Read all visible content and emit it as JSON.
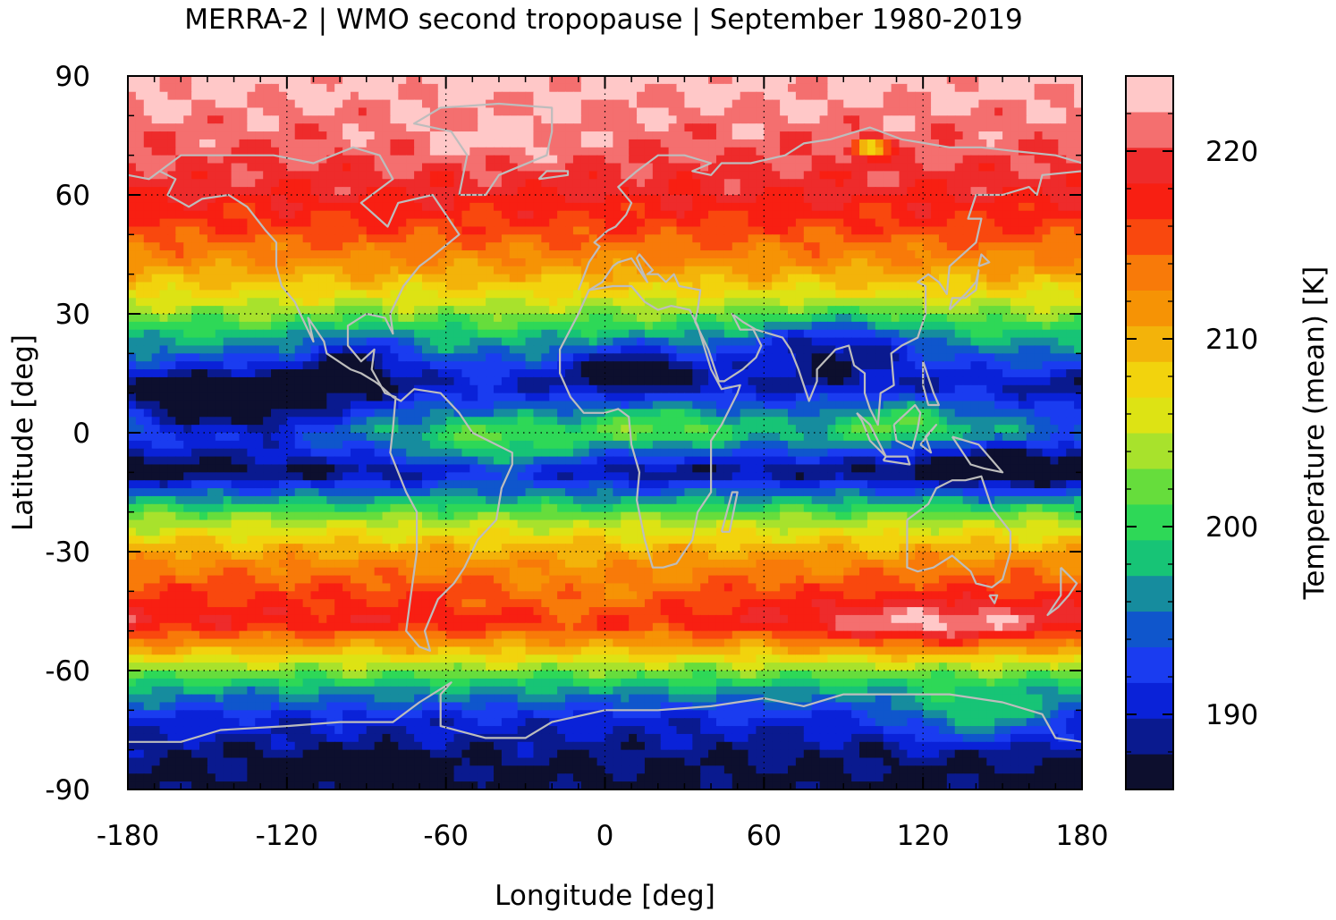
{
  "title": "MERRA-2 | WMO second tropopause | September 1980-2019",
  "xlabel": "Longitude [deg]",
  "ylabel": "Latitude [deg]",
  "colorbar_label": "Temperature (mean) [K]",
  "x_ticks": [
    "-180",
    "-120",
    "-60",
    "0",
    "60",
    "120",
    "180"
  ],
  "y_ticks": [
    "90",
    "60",
    "30",
    "0",
    "-30",
    "-60",
    "-90"
  ],
  "colorbar_ticks": [
    "220",
    "210",
    "200",
    "190"
  ],
  "colors": {
    "levels_bottom_to_top": [
      "#0d0f2e",
      "#0a1a8f",
      "#0a22d8",
      "#1a3cf0",
      "#0f56cc",
      "#168c9e",
      "#17c476",
      "#2ed857",
      "#66dd3c",
      "#a8e22c",
      "#dde314",
      "#f2d30d",
      "#f3b30a",
      "#f69305",
      "#f87a09",
      "#f9480e",
      "#f81f12",
      "#ee2b2b",
      "#f46f6f",
      "#ffc8c8"
    ],
    "coastline": "#bdbdbd",
    "frame": "#000000"
  },
  "chart_data": {
    "type": "heatmap",
    "title": "MERRA-2 | WMO second tropopause | September 1980-2019",
    "xlabel": "Longitude [deg]",
    "ylabel": "Latitude [deg]",
    "colorbar_label": "Temperature (mean) [K]",
    "xlim": [
      -180,
      180
    ],
    "ylim": [
      -90,
      90
    ],
    "colorbar_range": [
      186,
      224
    ],
    "colorbar_levels": 20,
    "grid": true,
    "zonal_profile_K": [
      {
        "lat": 90,
        "value": 223
      },
      {
        "lat": 75,
        "value": 221
      },
      {
        "lat": 62,
        "value": 219
      },
      {
        "lat": 52,
        "value": 216
      },
      {
        "lat": 43,
        "value": 212
      },
      {
        "lat": 35,
        "value": 207
      },
      {
        "lat": 25,
        "value": 199
      },
      {
        "lat": 12,
        "value": 190
      },
      {
        "lat": 0,
        "value": 198
      },
      {
        "lat": -10,
        "value": 188
      },
      {
        "lat": -22,
        "value": 204
      },
      {
        "lat": -32,
        "value": 212
      },
      {
        "lat": -40,
        "value": 216
      },
      {
        "lat": -48,
        "value": 218
      },
      {
        "lat": -56,
        "value": 208
      },
      {
        "lat": -64,
        "value": 198
      },
      {
        "lat": -72,
        "value": 191
      },
      {
        "lat": -82,
        "value": 188
      },
      {
        "lat": -90,
        "value": 187
      }
    ]
  }
}
